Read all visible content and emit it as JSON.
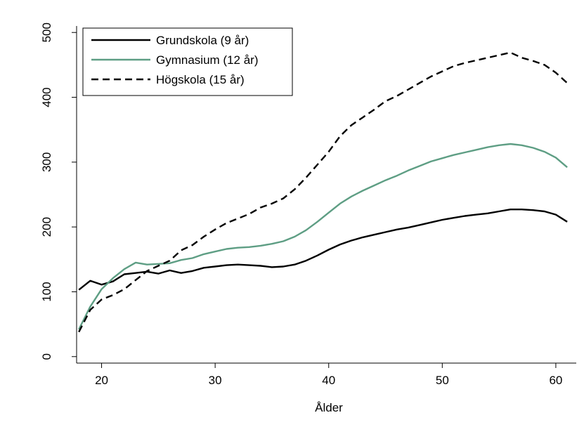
{
  "chart_data": {
    "type": "line",
    "title": "",
    "xlabel": "Ålder",
    "ylabel": "",
    "xlim": [
      17.8,
      61.8
    ],
    "ylim": [
      -10,
      510
    ],
    "xticks": [
      "20",
      "30",
      "40",
      "50",
      "60"
    ],
    "yticks": [
      "0",
      "100",
      "200",
      "300",
      "400",
      "500"
    ],
    "grid": false,
    "legend_position": "top-left",
    "x": [
      18,
      19,
      20,
      21,
      22,
      23,
      24,
      25,
      26,
      27,
      28,
      29,
      30,
      31,
      32,
      33,
      34,
      35,
      36,
      37,
      38,
      39,
      40,
      41,
      42,
      43,
      44,
      45,
      46,
      47,
      48,
      49,
      50,
      51,
      52,
      53,
      54,
      55,
      56,
      57,
      58,
      59,
      60,
      61
    ],
    "series": [
      {
        "name": "Grundskola (9 år)",
        "color": "#000000",
        "dash": "solid",
        "values": [
          103,
          117,
          111,
          116,
          127,
          129,
          131,
          128,
          133,
          129,
          132,
          137,
          139,
          141,
          142,
          141,
          140,
          138,
          139,
          142,
          148,
          156,
          165,
          173,
          179,
          184,
          188,
          192,
          196,
          199,
          203,
          207,
          211,
          214,
          217,
          219,
          221,
          224,
          227,
          227,
          226,
          224,
          219,
          208
        ]
      },
      {
        "name": "Gymnasium (12 år)",
        "color": "#5e9e84",
        "dash": "solid",
        "values": [
          42,
          77,
          104,
          121,
          135,
          145,
          142,
          143,
          144,
          149,
          152,
          158,
          162,
          166,
          168,
          169,
          171,
          174,
          178,
          185,
          195,
          208,
          222,
          236,
          247,
          256,
          264,
          272,
          279,
          287,
          294,
          301,
          306,
          311,
          315,
          319,
          323,
          326,
          328,
          326,
          322,
          316,
          307,
          292
        ]
      },
      {
        "name": "Högskola (15 år)",
        "color": "#000000",
        "dash": "dashed",
        "values": [
          38,
          72,
          88,
          95,
          104,
          118,
          132,
          140,
          148,
          164,
          172,
          185,
          196,
          206,
          213,
          220,
          230,
          236,
          244,
          258,
          276,
          296,
          316,
          340,
          357,
          369,
          381,
          394,
          402,
          412,
          422,
          432,
          440,
          448,
          453,
          457,
          461,
          465,
          469,
          461,
          456,
          450,
          438,
          422
        ]
      }
    ]
  }
}
